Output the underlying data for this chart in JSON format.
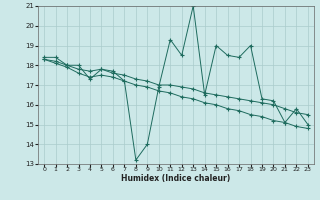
{
  "line1_x": [
    0,
    1,
    2,
    3,
    4,
    5,
    6,
    7,
    8,
    9,
    10,
    11,
    12,
    13,
    14,
    15,
    16,
    17,
    18,
    19,
    20,
    21,
    22,
    23
  ],
  "line1_y": [
    18.4,
    18.4,
    18.0,
    18.0,
    17.3,
    17.8,
    17.7,
    17.2,
    13.2,
    14.0,
    16.9,
    19.3,
    18.5,
    21.0,
    16.5,
    19.0,
    18.5,
    18.4,
    19.0,
    16.3,
    16.2,
    15.1,
    15.8,
    15.0
  ],
  "line2_x": [
    0,
    1,
    2,
    3,
    4,
    5,
    6,
    7,
    8,
    9,
    10,
    11,
    12,
    13,
    14,
    15,
    16,
    17,
    18,
    19,
    20,
    21,
    22,
    23
  ],
  "line2_y": [
    18.3,
    18.2,
    18.0,
    17.8,
    17.7,
    17.8,
    17.6,
    17.5,
    17.3,
    17.2,
    17.0,
    17.0,
    16.9,
    16.8,
    16.6,
    16.5,
    16.4,
    16.3,
    16.2,
    16.1,
    16.0,
    15.8,
    15.6,
    15.5
  ],
  "line3_x": [
    0,
    1,
    2,
    3,
    4,
    5,
    6,
    7,
    8,
    9,
    10,
    11,
    12,
    13,
    14,
    15,
    16,
    17,
    18,
    19,
    20,
    21,
    22,
    23
  ],
  "line3_y": [
    18.3,
    18.1,
    17.9,
    17.6,
    17.4,
    17.5,
    17.4,
    17.2,
    17.0,
    16.9,
    16.7,
    16.6,
    16.4,
    16.3,
    16.1,
    16.0,
    15.8,
    15.7,
    15.5,
    15.4,
    15.2,
    15.1,
    14.9,
    14.8
  ],
  "line_color": "#1e6b5e",
  "bg_color": "#cce8e8",
  "grid_color": "#aacccc",
  "xlabel": "Humidex (Indice chaleur)",
  "xlim": [
    -0.5,
    23.5
  ],
  "ylim": [
    13,
    21
  ],
  "yticks": [
    13,
    14,
    15,
    16,
    17,
    18,
    19,
    20,
    21
  ],
  "xticks": [
    0,
    1,
    2,
    3,
    4,
    5,
    6,
    7,
    8,
    9,
    10,
    11,
    12,
    13,
    14,
    15,
    16,
    17,
    18,
    19,
    20,
    21,
    22,
    23
  ]
}
